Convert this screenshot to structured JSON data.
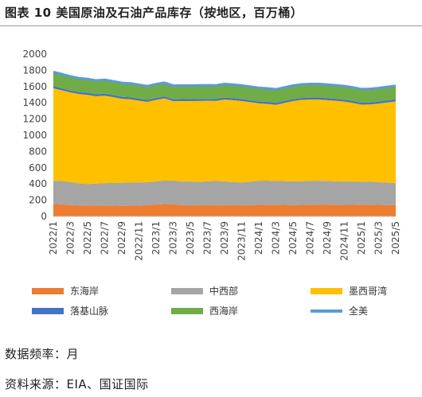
{
  "figure": {
    "title": "图表 10 美国原油及石油产品库存（按地区，百万桶）",
    "frequency_note": "数据频率：月",
    "source_note": "资料来源：EIA、国证国际"
  },
  "colors": {
    "东海岸": "#ED7D31",
    "中西部": "#A5A5A5",
    "墨西哥湾": "#FFC000",
    "落基山脉": "#4472C4",
    "西海岸": "#70AD47",
    "全美": "#5B9BD5"
  },
  "chart_data": {
    "type": "area",
    "stacked": true,
    "xlabel": "",
    "ylabel": "",
    "ylim": [
      0,
      2000
    ],
    "yticks": [
      0,
      200,
      400,
      600,
      800,
      1000,
      1200,
      1400,
      1600,
      1800,
      2000
    ],
    "grid": false,
    "legend_position": "bottom",
    "x": [
      "2022/1",
      "2022/2",
      "2022/3",
      "2022/4",
      "2022/5",
      "2022/6",
      "2022/7",
      "2022/8",
      "2022/9",
      "2022/10",
      "2022/11",
      "2022/12",
      "2023/1",
      "2023/2",
      "2023/3",
      "2023/4",
      "2023/5",
      "2023/6",
      "2023/7",
      "2023/8",
      "2023/9",
      "2023/10",
      "2023/11",
      "2023/12",
      "2024/1",
      "2024/2",
      "2024/3",
      "2024/4",
      "2024/5",
      "2024/6",
      "2024/7",
      "2024/8",
      "2024/9",
      "2024/10",
      "2024/11",
      "2024/12",
      "2025/1",
      "2025/2",
      "2025/3",
      "2025/4",
      "2025/5"
    ],
    "x_tick_labels": [
      "2022/1",
      "2022/3",
      "2022/5",
      "2022/7",
      "2022/9",
      "2022/11",
      "2023/1",
      "2023/3",
      "2023/5",
      "2023/7",
      "2023/9",
      "2023/11",
      "2024/1",
      "2024/3",
      "2024/5",
      "2024/7",
      "2024/9",
      "2024/11",
      "2025/1",
      "2025/3",
      "2025/5"
    ],
    "series": [
      {
        "name": "东海岸",
        "kind": "area",
        "values": [
          155,
          148,
          140,
          136,
          135,
          136,
          135,
          133,
          130,
          132,
          134,
          140,
          148,
          152,
          150,
          140,
          138,
          136,
          138,
          140,
          140,
          138,
          136,
          138,
          142,
          145,
          144,
          142,
          140,
          142,
          145,
          146,
          146,
          144,
          142,
          142,
          146,
          145,
          142,
          140,
          140
        ]
      },
      {
        "name": "中西部",
        "kind": "area",
        "values": [
          285,
          288,
          283,
          272,
          265,
          268,
          275,
          280,
          285,
          285,
          285,
          282,
          285,
          290,
          292,
          290,
          292,
          290,
          295,
          298,
          292,
          285,
          283,
          290,
          298,
          296,
          294,
          293,
          293,
          292,
          295,
          294,
          292,
          288,
          288,
          288,
          283,
          285,
          280,
          275,
          270
        ]
      },
      {
        "name": "墨西哥湾",
        "kind": "area",
        "values": [
          1140,
          1118,
          1105,
          1100,
          1098,
          1076,
          1078,
          1057,
          1035,
          1027,
          1008,
          990,
          1003,
          1013,
          978,
          992,
          991,
          997,
          992,
          985,
          1008,
          1010,
          1003,
          980,
          953,
          945,
          937,
          963,
          988,
          1002,
          1000,
          1000,
          995,
          993,
          985,
          968,
          948,
          950,
          968,
          990,
          1007
        ]
      },
      {
        "name": "落基山脉",
        "kind": "area",
        "values": [
          24,
          24,
          24,
          24,
          24,
          24,
          24,
          24,
          24,
          24,
          24,
          24,
          24,
          24,
          24,
          24,
          24,
          24,
          24,
          24,
          24,
          24,
          24,
          24,
          24,
          24,
          24,
          24,
          24,
          24,
          24,
          24,
          24,
          24,
          24,
          24,
          24,
          24,
          24,
          24,
          24
        ]
      },
      {
        "name": "西海岸",
        "kind": "area",
        "values": [
          176,
          176,
          174,
          172,
          172,
          172,
          172,
          172,
          172,
          172,
          172,
          170,
          170,
          169,
          168,
          168,
          168,
          168,
          168,
          168,
          168,
          168,
          168,
          168,
          168,
          168,
          168,
          168,
          168,
          168,
          168,
          168,
          168,
          168,
          168,
          168,
          168,
          168,
          168,
          168,
          168
        ]
      },
      {
        "name": "全美",
        "kind": "line",
        "values": [
          1780,
          1754,
          1726,
          1704,
          1694,
          1676,
          1684,
          1666,
          1646,
          1640,
          1623,
          1606,
          1630,
          1648,
          1612,
          1614,
          1613,
          1615,
          1617,
          1615,
          1632,
          1625,
          1614,
          1600,
          1585,
          1578,
          1567,
          1590,
          1613,
          1628,
          1632,
          1632,
          1625,
          1617,
          1607,
          1590,
          1569,
          1572,
          1582,
          1597,
          1609
        ]
      }
    ]
  }
}
